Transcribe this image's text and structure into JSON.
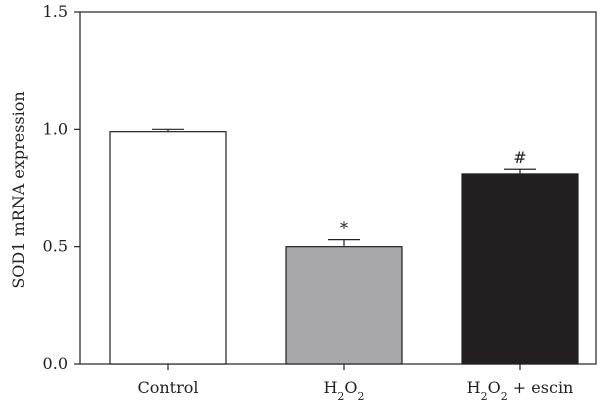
{
  "chart_data": {
    "type": "bar",
    "ylabel": "SOD1 mRNA expression",
    "ylim": [
      0,
      1.5
    ],
    "yticks": [
      "0.0",
      "0.5",
      "1.0",
      "1.5"
    ],
    "categories": [
      {
        "main": "Control",
        "parts": [
          {
            "text": "Control",
            "sub": false
          }
        ]
      },
      {
        "main": "H2O2",
        "parts": [
          {
            "text": "H",
            "sub": false
          },
          {
            "text": "2",
            "sub": true
          },
          {
            "text": "O",
            "sub": false
          },
          {
            "text": "2",
            "sub": true
          }
        ]
      },
      {
        "main": "H2O2 + escin",
        "parts": [
          {
            "text": "H",
            "sub": false
          },
          {
            "text": "2",
            "sub": true
          },
          {
            "text": "O",
            "sub": false
          },
          {
            "text": "2",
            "sub": true
          },
          {
            "text": " + escin",
            "sub": false
          }
        ]
      }
    ],
    "values": [
      0.99,
      0.5,
      0.81
    ],
    "errors": [
      0.01,
      0.03,
      0.02
    ],
    "significance": [
      "",
      "*",
      "#"
    ],
    "colors": [
      "#ffffff",
      "#a8a8aa",
      "#231f20"
    ],
    "grid": false,
    "legend": "none"
  }
}
